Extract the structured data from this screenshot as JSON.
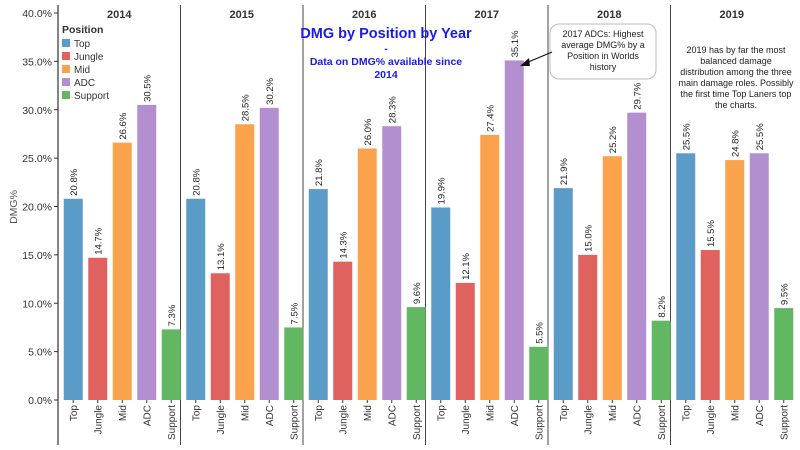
{
  "chart_data": {
    "type": "bar",
    "title": "DMG by Position by Year",
    "subtitle_dash": "-",
    "subtitle_lines": [
      "Data on DMG% available since",
      "2014"
    ],
    "ylabel": "DMG%",
    "ylim": [
      0,
      40
    ],
    "yticks": [
      "0.0%",
      "5.0%",
      "10.0%",
      "15.0%",
      "20.0%",
      "25.0%",
      "30.0%",
      "35.0%",
      "40.0%"
    ],
    "categories": [
      "Top",
      "Jungle",
      "Mid",
      "ADC",
      "Support"
    ],
    "legend": {
      "title": "Position",
      "placement": "top-left",
      "entries": [
        "Top",
        "Jungle",
        "Mid",
        "ADC",
        "Support"
      ]
    },
    "colors": {
      "Top": "#5b9bc8",
      "Jungle": "#e0625f",
      "Mid": "#fba24d",
      "ADC": "#b48fd0",
      "Support": "#62b862"
    },
    "groups": [
      {
        "year": "2014",
        "values": [
          20.8,
          14.7,
          26.6,
          30.5,
          7.3
        ],
        "labels": [
          "20.8%",
          "14.7%",
          "26.6%",
          "30.5%",
          "7.3%"
        ]
      },
      {
        "year": "2015",
        "values": [
          20.8,
          13.1,
          28.5,
          30.2,
          7.5
        ],
        "labels": [
          "20.8%",
          "13.1%",
          "28.5%",
          "30.2%",
          "7.5%"
        ]
      },
      {
        "year": "2016",
        "values": [
          21.8,
          14.3,
          26.0,
          28.3,
          9.6
        ],
        "labels": [
          "21.8%",
          "14.3%",
          "26.0%",
          "28.3%",
          "9.6%"
        ]
      },
      {
        "year": "2017",
        "values": [
          19.9,
          12.1,
          27.4,
          35.1,
          5.5
        ],
        "labels": [
          "19.9%",
          "12.1%",
          "27.4%",
          "35.1%",
          "5.5%"
        ]
      },
      {
        "year": "2018",
        "values": [
          21.9,
          15.0,
          25.2,
          29.7,
          8.2
        ],
        "labels": [
          "21.9%",
          "15.0%",
          "25.2%",
          "29.7%",
          "8.2%"
        ]
      },
      {
        "year": "2019",
        "values": [
          25.5,
          15.5,
          24.8,
          25.5,
          9.5
        ],
        "labels": [
          "25.5%",
          "15.5%",
          "24.8%",
          "25.5%",
          "9.5%"
        ]
      }
    ],
    "annotations": [
      {
        "name": "annotation-2017",
        "lines": [
          "2017 ADCs: Highest",
          "average DMG% by a",
          "Position in Worlds",
          "history"
        ]
      },
      {
        "name": "annotation-2019",
        "lines": [
          "2019 has by far the most",
          "balanced damage",
          "distribution among the three",
          "main damage roles. Possibly",
          "the first time Top Laners top",
          "the charts."
        ]
      }
    ],
    "grid": false
  }
}
